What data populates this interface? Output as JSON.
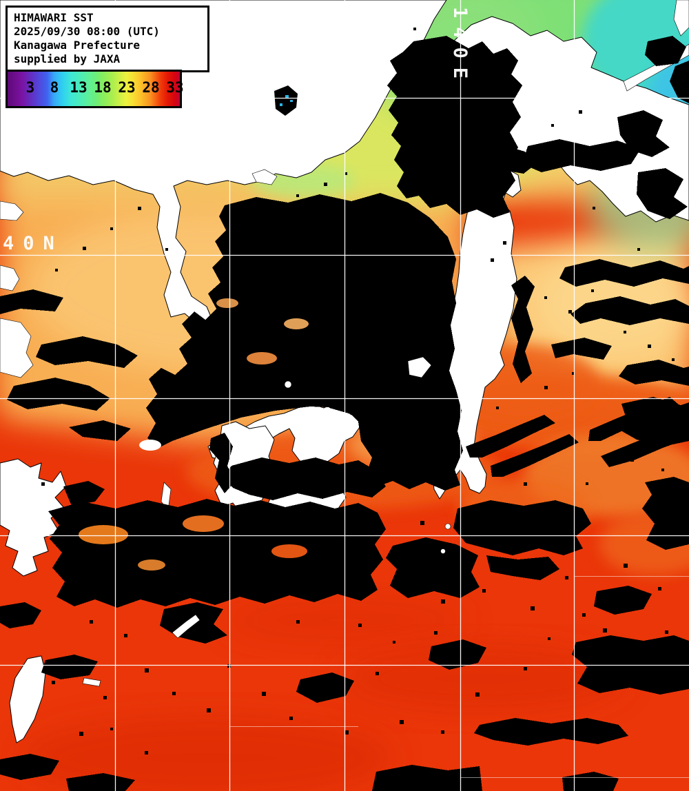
{
  "header": {
    "lines": [
      "HIMAWARI SST",
      "2025/09/30 08:00 (UTC)",
      "Kanagawa Prefecture",
      "supplied by JAXA"
    ]
  },
  "colorbar": {
    "tick_labels": [
      "3",
      "8",
      "13",
      "18",
      "23",
      "28",
      "33"
    ],
    "tick_positions_pct": [
      13.2,
      27.2,
      41.2,
      55.2,
      69.2,
      83.2,
      97.2
    ],
    "gradient_stops": [
      {
        "pct": 0,
        "color": "#5e0a78"
      },
      {
        "pct": 8,
        "color": "#7a12a0"
      },
      {
        "pct": 16,
        "color": "#5a3ad0"
      },
      {
        "pct": 23,
        "color": "#3f63f0"
      },
      {
        "pct": 27,
        "color": "#38a8f8"
      },
      {
        "pct": 32,
        "color": "#2fd0f0"
      },
      {
        "pct": 37,
        "color": "#3fe8d5"
      },
      {
        "pct": 41,
        "color": "#48ecc0"
      },
      {
        "pct": 47,
        "color": "#5df098"
      },
      {
        "pct": 52,
        "color": "#70ee75"
      },
      {
        "pct": 55,
        "color": "#85ee60"
      },
      {
        "pct": 60,
        "color": "#a5ee50"
      },
      {
        "pct": 65,
        "color": "#cdf046"
      },
      {
        "pct": 69,
        "color": "#eef23e"
      },
      {
        "pct": 73,
        "color": "#f8de33"
      },
      {
        "pct": 77,
        "color": "#fbc32a"
      },
      {
        "pct": 83,
        "color": "#f99021"
      },
      {
        "pct": 87,
        "color": "#f55510"
      },
      {
        "pct": 89,
        "color": "#ef3a0a"
      },
      {
        "pct": 93,
        "color": "#e41706"
      },
      {
        "pct": 97,
        "color": "#d60410"
      },
      {
        "pct": 100,
        "color": "#c20433"
      }
    ]
  },
  "grid": {
    "lon_label": "140E",
    "lat_label": "40N",
    "line_color": "#ffffff"
  },
  "map_colors": {
    "land": "#ffffff",
    "coastline": "#000000",
    "cloud": "#000000",
    "lake_water": "#2fb4e8",
    "sea_base": "#ea3609",
    "sea_red_deep": "#d82806",
    "sea_front": "#ee5d12",
    "sea_warm_band": "#f07522",
    "sea_soj": "#f8ae52",
    "sea_sandy": "#fbca78",
    "sea_yellow": "#f4cb69",
    "sea_yellow_green": "#d8e95e",
    "sea_green": "#7ee076",
    "sea_cyan": "#44d8c6",
    "sea_blue": "#3cc2e8"
  }
}
